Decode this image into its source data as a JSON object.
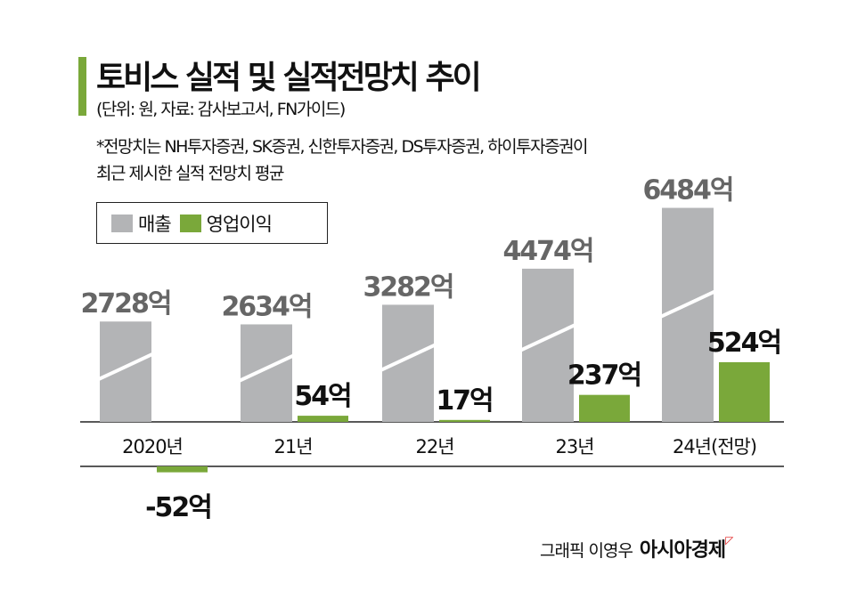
{
  "title": "토비스 실적 및 실적전망치 추이",
  "subtitle": "(단위: 원, 자료: 감사보고서, FN가이드)",
  "note_line1": "*전망치는 NH투자증권, SK증권, 신한투자증권, DS투자증권, 하이투자증권이",
  "note_line2": "최근 제시한  실적 전망치 평균",
  "credit": "그래픽 이영우",
  "brand": "아시아경제",
  "colors": {
    "accent": "#7aa83a",
    "sales": "#b3b4b6",
    "operating_profit": "#7aa83a"
  },
  "chart_data": {
    "type": "bar",
    "categories": [
      "2020년",
      "21년",
      "22년",
      "23년",
      "24년(전망)"
    ],
    "series": [
      {
        "name": "매출",
        "values": [
          2728,
          2634,
          3282,
          4474,
          6484
        ],
        "labels": [
          "2728억",
          "2634억",
          "3282억",
          "4474억",
          "6484억"
        ],
        "axis_break": true
      },
      {
        "name": "영업이익",
        "values": [
          -52,
          54,
          17,
          237,
          524
        ],
        "labels": [
          "-52억",
          "54억",
          "17억",
          "237억",
          "524억"
        ]
      }
    ],
    "unit": "억",
    "legend_position": "top-left",
    "grid": false
  }
}
